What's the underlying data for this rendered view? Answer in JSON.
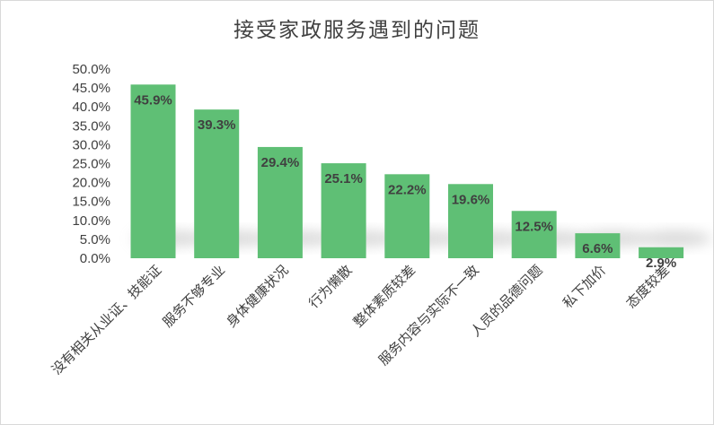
{
  "chart_data": {
    "type": "bar",
    "title": "接受家政服务遇到的问题",
    "categories": [
      "没有相关从业证、技能证",
      "服务不够专业",
      "身体健康状况",
      "行为懒散",
      "整体素质较差",
      "服务内容与实际不一致",
      "人员的品德问题",
      "私下加价",
      "态度较差"
    ],
    "values": [
      45.9,
      39.3,
      29.4,
      25.1,
      22.2,
      19.6,
      12.5,
      6.6,
      2.9
    ],
    "data_labels": [
      "45.9%",
      "39.3%",
      "29.4%",
      "25.1%",
      "22.2%",
      "19.6%",
      "12.5%",
      "6.6%",
      "2.9%"
    ],
    "ylim": [
      0,
      50
    ],
    "yticks": [
      "0.0%",
      "5.0%",
      "10.0%",
      "15.0%",
      "20.0%",
      "25.0%",
      "30.0%",
      "35.0%",
      "40.0%",
      "45.0%",
      "50.0%"
    ],
    "grid": false,
    "legend": "none",
    "bar_color": "#5fbf75"
  }
}
